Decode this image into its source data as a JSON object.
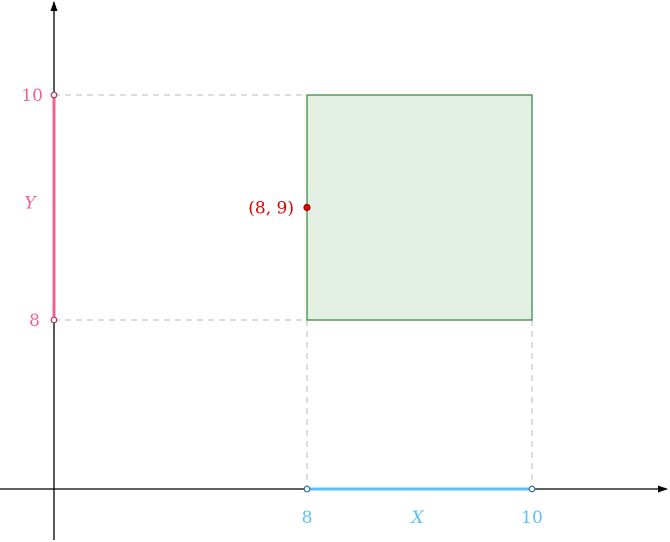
{
  "diagram": {
    "x_interval": {
      "label": "X",
      "start_label": "8",
      "end_label": "10",
      "start": 8,
      "end": 10,
      "color": "#5bc0f5"
    },
    "y_interval": {
      "label": "Y",
      "start_label": "8",
      "end_label": "10",
      "start": 8,
      "end": 10,
      "color": "#f06292"
    },
    "region": {
      "x_range": [
        8,
        10
      ],
      "y_range": [
        8,
        10
      ],
      "fill": "#e3efe3",
      "stroke": "#3f8a3f"
    },
    "point": {
      "label": "(8, 9)",
      "x": 8,
      "y": 9,
      "color": "#dd0000"
    },
    "guide_color": "#b8b8b8",
    "axis_color": "#000000"
  }
}
